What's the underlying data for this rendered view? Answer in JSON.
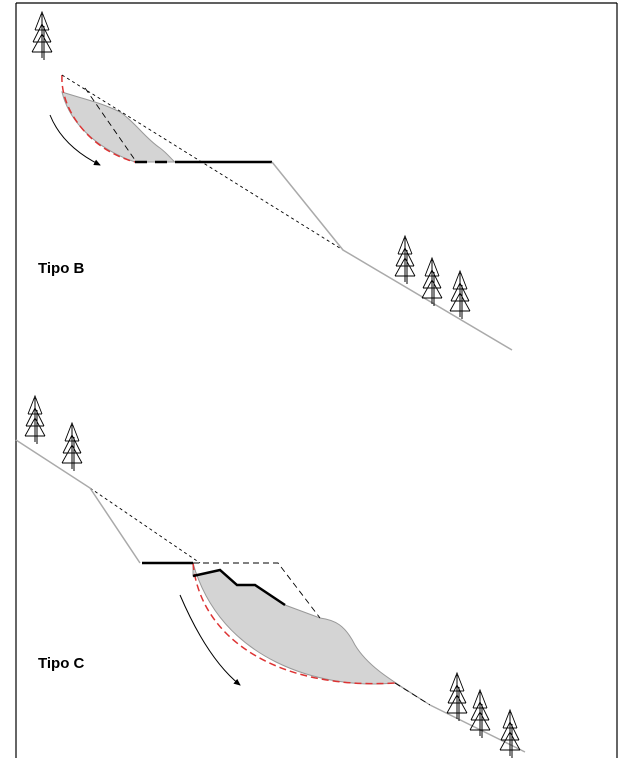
{
  "labels": {
    "tipo_b": "Tipo B",
    "tipo_c": "Tipo C"
  }
}
